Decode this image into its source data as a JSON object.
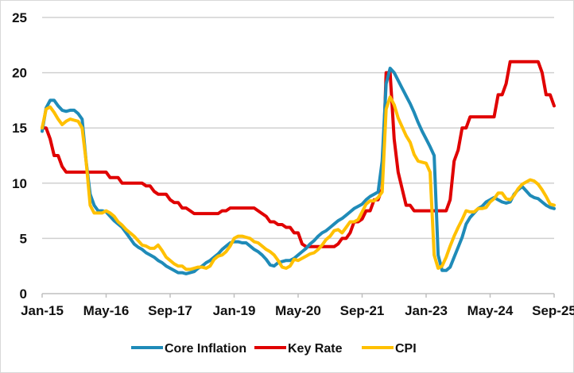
{
  "chart_data": {
    "type": "line",
    "title": "",
    "xlabel": "",
    "ylabel": "",
    "ylim": [
      0,
      25
    ],
    "yticks": [
      "0",
      "5",
      "10",
      "15",
      "20",
      "25"
    ],
    "xtick_labels": [
      "Jan-15",
      "May-16",
      "Sep-17",
      "Jan-19",
      "May-20",
      "Sep-21",
      "Jan-23",
      "May-24",
      "Sep-25"
    ],
    "x_start": "Jan-15",
    "x_end": "Sep-25",
    "frequency": "monthly",
    "grid": true,
    "legend_position": "bottom",
    "series": [
      {
        "name": "Core Inflation",
        "color": "#1F8BB8",
        "values": [
          14.7,
          16.8,
          17.5,
          17.5,
          17.0,
          16.6,
          16.5,
          16.6,
          16.6,
          16.3,
          15.8,
          12.0,
          9.0,
          8.0,
          7.5,
          7.5,
          7.4,
          7.0,
          6.6,
          6.3,
          6.0,
          5.5,
          5.0,
          4.5,
          4.2,
          4.0,
          3.7,
          3.5,
          3.3,
          3.0,
          2.8,
          2.5,
          2.3,
          2.1,
          1.9,
          1.9,
          1.8,
          1.9,
          2.0,
          2.3,
          2.5,
          2.8,
          3.0,
          3.3,
          3.6,
          4.0,
          4.3,
          4.6,
          4.7,
          4.7,
          4.6,
          4.6,
          4.3,
          4.0,
          3.8,
          3.5,
          3.1,
          2.6,
          2.5,
          2.8,
          2.9,
          3.0,
          3.0,
          3.2,
          3.5,
          3.8,
          4.1,
          4.5,
          4.8,
          5.2,
          5.5,
          5.7,
          6.0,
          6.3,
          6.6,
          6.8,
          7.1,
          7.4,
          7.7,
          7.9,
          8.1,
          8.5,
          8.8,
          9.0,
          9.2,
          12.0,
          19.0,
          20.4,
          20.0,
          19.3,
          18.6,
          17.9,
          17.2,
          16.4,
          15.5,
          14.7,
          14.0,
          13.3,
          12.5,
          3.5,
          2.1,
          2.1,
          2.4,
          3.3,
          4.2,
          5.1,
          6.3,
          6.9,
          7.3,
          7.7,
          7.9,
          8.3,
          8.5,
          8.7,
          8.5,
          8.3,
          8.2,
          8.3,
          9.0,
          9.4,
          9.7,
          9.3,
          8.9,
          8.7,
          8.6,
          8.3,
          8.0,
          7.8,
          7.7
        ]
      },
      {
        "name": "Key Rate",
        "color": "#E00000",
        "values": [
          15,
          15,
          14,
          12.5,
          12.5,
          11.5,
          11,
          11,
          11,
          11,
          11,
          11,
          11,
          11,
          11,
          11,
          11,
          10.5,
          10.5,
          10.5,
          10,
          10,
          10,
          10,
          10,
          10,
          9.75,
          9.75,
          9.25,
          9,
          9,
          9,
          8.5,
          8.25,
          8.25,
          7.75,
          7.75,
          7.5,
          7.25,
          7.25,
          7.25,
          7.25,
          7.25,
          7.25,
          7.25,
          7.5,
          7.5,
          7.75,
          7.75,
          7.75,
          7.75,
          7.75,
          7.75,
          7.75,
          7.5,
          7.25,
          7,
          6.5,
          6.5,
          6.25,
          6.25,
          6,
          6,
          5.5,
          5.5,
          4.5,
          4.25,
          4.25,
          4.25,
          4.25,
          4.25,
          4.25,
          4.25,
          4.25,
          4.5,
          5,
          5,
          5.5,
          6.5,
          6.5,
          6.75,
          7.5,
          7.5,
          8.5,
          8.5,
          9.5,
          20,
          20,
          14,
          11,
          9.5,
          8,
          8,
          7.5,
          7.5,
          7.5,
          7.5,
          7.5,
          7.5,
          7.5,
          7.5,
          7.5,
          8.5,
          12,
          13,
          15,
          15,
          16,
          16,
          16,
          16,
          16,
          16,
          16,
          18,
          18,
          19,
          21,
          21,
          21,
          21,
          21,
          21,
          21,
          21,
          20,
          18,
          18,
          17
        ]
      },
      {
        "name": "CPI",
        "color": "#FFC000",
        "values": [
          15.0,
          16.7,
          16.9,
          16.4,
          15.8,
          15.3,
          15.6,
          15.8,
          15.7,
          15.6,
          15.0,
          12.0,
          8.0,
          7.3,
          7.3,
          7.3,
          7.5,
          7.3,
          7.0,
          6.5,
          6.2,
          5.8,
          5.5,
          5.2,
          4.8,
          4.4,
          4.3,
          4.1,
          4.1,
          4.4,
          3.9,
          3.3,
          3.0,
          2.7,
          2.5,
          2.5,
          2.2,
          2.2,
          2.3,
          2.4,
          2.4,
          2.3,
          2.5,
          3.1,
          3.4,
          3.5,
          3.8,
          4.3,
          5.0,
          5.2,
          5.2,
          5.1,
          5.0,
          4.7,
          4.6,
          4.3,
          4.0,
          3.8,
          3.5,
          3.0,
          2.4,
          2.3,
          2.5,
          3.1,
          3.0,
          3.2,
          3.4,
          3.6,
          3.7,
          4.0,
          4.4,
          4.9,
          5.2,
          5.7,
          5.8,
          5.5,
          6.0,
          6.5,
          6.5,
          6.7,
          7.4,
          8.1,
          8.4,
          8.4,
          8.7,
          9.2,
          16.7,
          17.8,
          17.1,
          15.9,
          15.1,
          14.3,
          13.7,
          12.6,
          12.0,
          11.9,
          11.8,
          11.0,
          3.5,
          2.3,
          2.5,
          3.3,
          4.3,
          5.2,
          6.0,
          6.7,
          7.5,
          7.4,
          7.4,
          7.7,
          7.7,
          7.8,
          8.3,
          8.6,
          9.1,
          9.1,
          8.6,
          8.5,
          8.9,
          9.5,
          9.9,
          10.1,
          10.3,
          10.2,
          9.9,
          9.4,
          8.8,
          8.1,
          8.0
        ]
      }
    ]
  }
}
